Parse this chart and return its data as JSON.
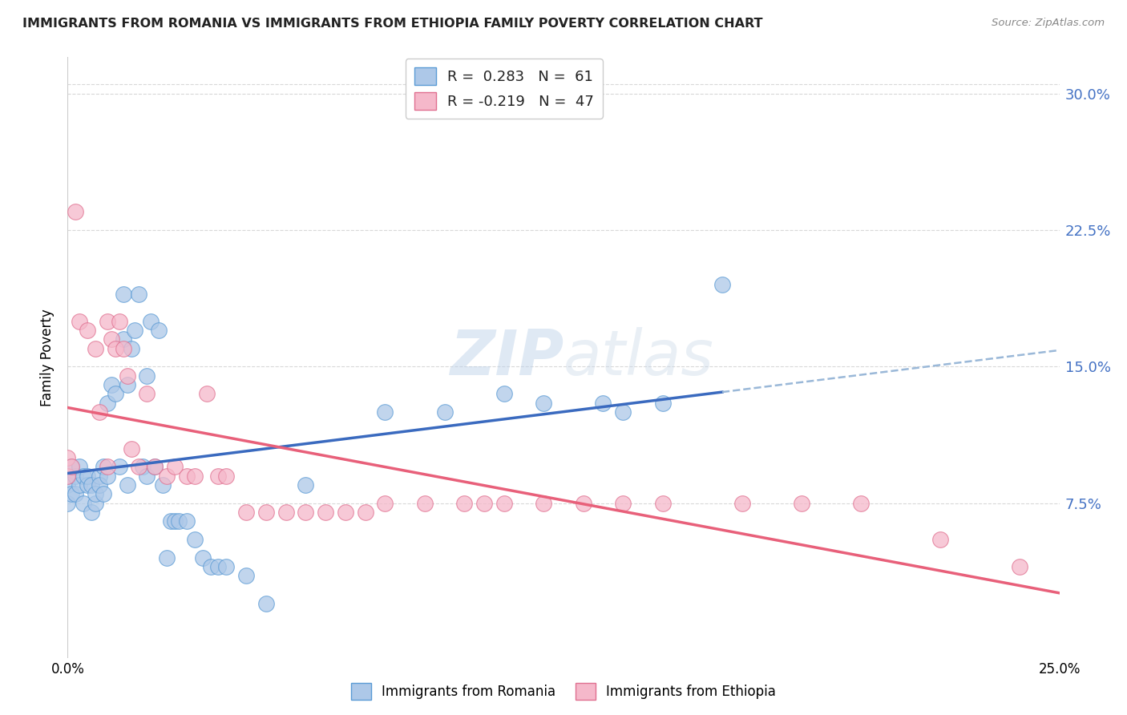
{
  "title": "IMMIGRANTS FROM ROMANIA VS IMMIGRANTS FROM ETHIOPIA FAMILY POVERTY CORRELATION CHART",
  "source": "Source: ZipAtlas.com",
  "ylabel": "Family Poverty",
  "ytick_labels": [
    "7.5%",
    "15.0%",
    "22.5%",
    "30.0%"
  ],
  "ytick_values": [
    7.5,
    15.0,
    22.5,
    30.0
  ],
  "xlim": [
    0.0,
    25.0
  ],
  "ylim": [
    -1.0,
    32.0
  ],
  "romania_R": 0.283,
  "romania_N": 61,
  "ethiopia_R": -0.219,
  "ethiopia_N": 47,
  "romania_color": "#adc8e8",
  "ethiopia_color": "#f5b8ca",
  "romania_edge_color": "#5b9bd5",
  "ethiopia_edge_color": "#e07090",
  "romania_line_color": "#3a6abf",
  "ethiopia_line_color": "#e8607a",
  "trendline_dashed_color": "#9ab8d8",
  "watermark": "ZIPatlas",
  "background_color": "#ffffff",
  "grid_color": "#d8d8d8",
  "romania_scatter_x": [
    0.0,
    0.0,
    0.0,
    0.1,
    0.1,
    0.2,
    0.2,
    0.3,
    0.3,
    0.4,
    0.4,
    0.5,
    0.5,
    0.6,
    0.6,
    0.7,
    0.7,
    0.8,
    0.8,
    0.9,
    0.9,
    1.0,
    1.0,
    1.1,
    1.2,
    1.3,
    1.4,
    1.4,
    1.5,
    1.5,
    1.6,
    1.7,
    1.8,
    1.9,
    2.0,
    2.0,
    2.1,
    2.2,
    2.3,
    2.4,
    2.5,
    2.6,
    2.7,
    2.8,
    3.0,
    3.2,
    3.4,
    3.6,
    3.8,
    4.0,
    4.5,
    5.0,
    6.0,
    8.0,
    9.5,
    11.0,
    12.0,
    13.5,
    14.0,
    15.0,
    16.5
  ],
  "romania_scatter_y": [
    9.0,
    8.5,
    7.5,
    9.5,
    8.0,
    9.0,
    8.0,
    8.5,
    9.5,
    7.5,
    9.0,
    8.5,
    9.0,
    8.5,
    7.0,
    7.5,
    8.0,
    9.0,
    8.5,
    8.0,
    9.5,
    9.0,
    13.0,
    14.0,
    13.5,
    9.5,
    16.5,
    19.0,
    14.0,
    8.5,
    16.0,
    17.0,
    19.0,
    9.5,
    14.5,
    9.0,
    17.5,
    9.5,
    17.0,
    8.5,
    4.5,
    6.5,
    6.5,
    6.5,
    6.5,
    5.5,
    4.5,
    4.0,
    4.0,
    4.0,
    3.5,
    2.0,
    8.5,
    12.5,
    12.5,
    13.5,
    13.0,
    13.0,
    12.5,
    13.0,
    19.5
  ],
  "ethiopia_scatter_x": [
    0.0,
    0.0,
    0.1,
    0.2,
    0.3,
    0.5,
    0.7,
    0.8,
    1.0,
    1.0,
    1.1,
    1.2,
    1.3,
    1.4,
    1.5,
    1.6,
    1.8,
    2.0,
    2.2,
    2.5,
    2.7,
    3.0,
    3.2,
    3.5,
    3.8,
    4.0,
    4.5,
    5.0,
    5.5,
    6.0,
    6.5,
    7.0,
    7.5,
    8.0,
    9.0,
    10.0,
    10.5,
    11.0,
    12.0,
    13.0,
    14.0,
    15.0,
    17.0,
    18.5,
    20.0,
    22.0,
    24.0
  ],
  "ethiopia_scatter_y": [
    10.0,
    9.0,
    9.5,
    23.5,
    17.5,
    17.0,
    16.0,
    12.5,
    9.5,
    17.5,
    16.5,
    16.0,
    17.5,
    16.0,
    14.5,
    10.5,
    9.5,
    13.5,
    9.5,
    9.0,
    9.5,
    9.0,
    9.0,
    13.5,
    9.0,
    9.0,
    7.0,
    7.0,
    7.0,
    7.0,
    7.0,
    7.0,
    7.0,
    7.5,
    7.5,
    7.5,
    7.5,
    7.5,
    7.5,
    7.5,
    7.5,
    7.5,
    7.5,
    7.5,
    7.5,
    5.5,
    4.0
  ]
}
